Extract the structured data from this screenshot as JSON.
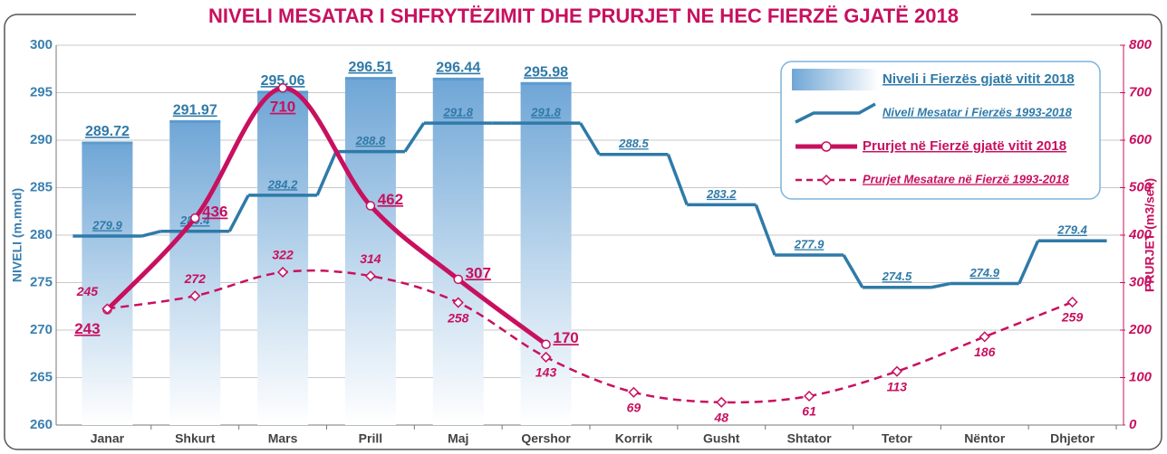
{
  "chart_data": {
    "type": "combo",
    "title": "NIVELI MESATAR I SHFRYTËZIMIT DHE PRURJET NE HEC FIERZË GJATË 2018",
    "y_label": "NIVELI  (m.mnd)",
    "y2_label": "PRURJET  (m3/sek)",
    "categories": [
      "Janar",
      "Shkurt",
      "Mars",
      "Prill",
      "Maj",
      "Qershor",
      "Korrik",
      "Gusht",
      "Shtator",
      "Tetor",
      "Nëntor",
      "Dhjetor"
    ],
    "ylim": [
      260,
      300
    ],
    "yticks": [
      260,
      265,
      270,
      275,
      280,
      285,
      290,
      295,
      300
    ],
    "y2lim": [
      0,
      800
    ],
    "y2ticks": [
      0,
      100,
      200,
      300,
      400,
      500,
      600,
      700,
      800
    ],
    "grid": true,
    "legend": "upper right",
    "series": [
      {
        "name": "Niveli i Fierzës gjatë vitit 2018",
        "type": "bar",
        "color": "#5b9bd0",
        "values": [
          289.72,
          291.97,
          295.06,
          296.51,
          296.44,
          295.98,
          null,
          null,
          null,
          null,
          null,
          null
        ]
      },
      {
        "name": "Niveli Mesatar i Fierzës 1993-2018",
        "type": "step",
        "color": "#2f7aa8",
        "values": [
          279.9,
          280.4,
          284.2,
          288.8,
          291.8,
          291.8,
          288.5,
          283.2,
          277.9,
          274.5,
          274.9,
          279.4
        ]
      },
      {
        "name": "Prurjet në Fierzë gjatë vitit 2018",
        "type": "line",
        "axis": "y2",
        "color": "#c8105f",
        "values": [
          243,
          436,
          710,
          462,
          307,
          170,
          null,
          null,
          null,
          null,
          null,
          null
        ]
      },
      {
        "name": "Prurjet Mesatare në Fierzë 1993-2018",
        "type": "line",
        "axis": "y2",
        "color": "#c8105f",
        "dashed": true,
        "values": [
          245,
          272,
          322,
          314,
          258,
          143,
          69,
          48,
          61,
          113,
          186,
          259
        ]
      }
    ]
  }
}
